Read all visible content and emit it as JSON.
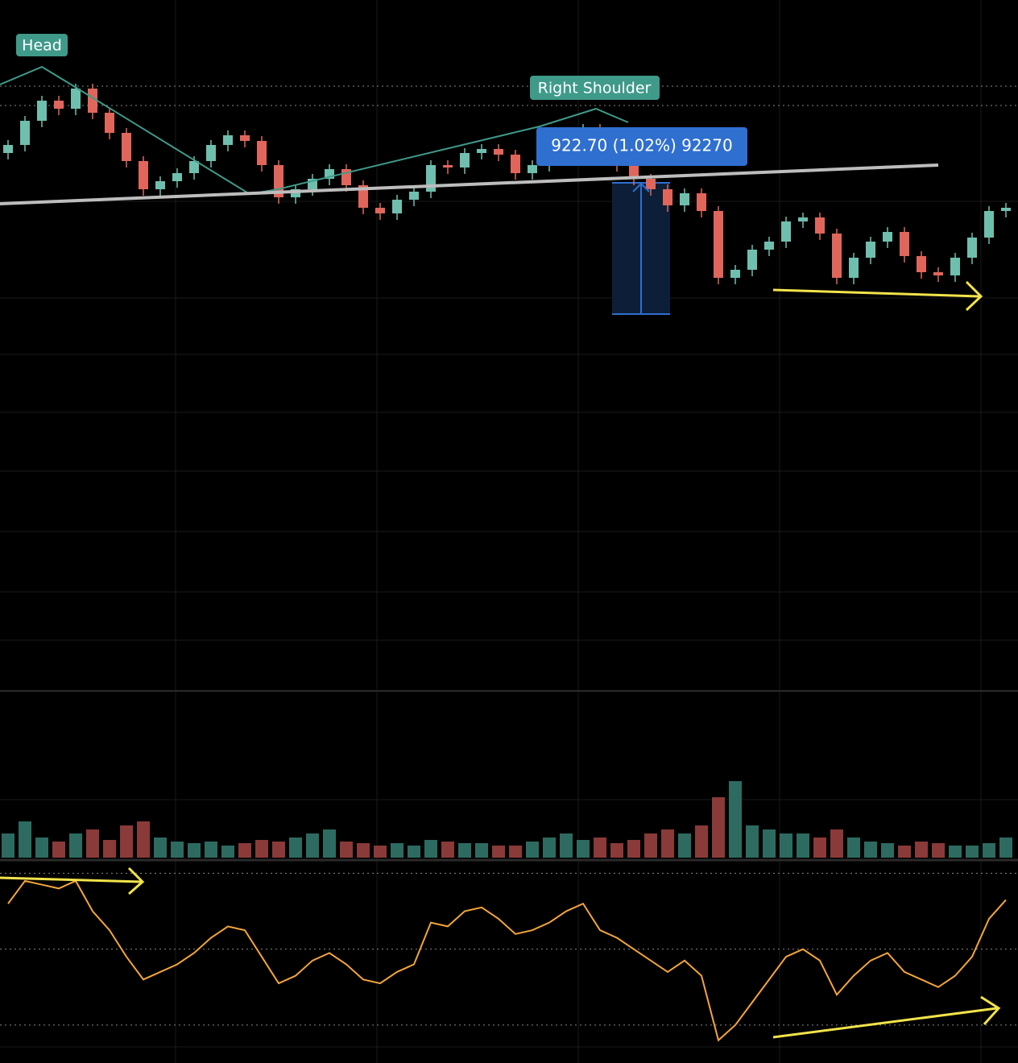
{
  "chart_data": {
    "type": "candlestick",
    "annotations": {
      "head": "Head",
      "right_shoulder": "Right Shoulder",
      "measure": "922.70 (1.02%) 92270"
    },
    "open": [
      91150,
      91200,
      91350,
      91475,
      91425,
      91550,
      91400,
      91275,
      91100,
      90925,
      90975,
      91025,
      91100,
      91200,
      91260,
      91225,
      91075,
      90875,
      90925,
      90990,
      91050,
      90950,
      90810,
      90775,
      90860,
      90910,
      91075,
      91060,
      91150,
      91175,
      91140,
      91025,
      91075,
      91125,
      91250,
      91300,
      91125,
      91075,
      90990,
      90925,
      90825,
      90900,
      90790,
      90375,
      90425,
      90550,
      90600,
      90725,
      90750,
      90650,
      90375,
      90500,
      90600,
      90660,
      90510,
      90410,
      90390,
      90500,
      90625,
      90790
    ],
    "high": [
      91230,
      91380,
      91505,
      91505,
      91580,
      91580,
      91430,
      91305,
      91130,
      91005,
      91055,
      91130,
      91230,
      91290,
      91290,
      91255,
      91105,
      90955,
      91020,
      91080,
      91080,
      90980,
      90840,
      90890,
      90940,
      91105,
      91105,
      91180,
      91205,
      91205,
      91170,
      91105,
      91155,
      91280,
      91330,
      91330,
      91155,
      91105,
      91020,
      90955,
      90930,
      90930,
      90820,
      90455,
      90580,
      90630,
      90755,
      90780,
      90780,
      90680,
      90530,
      90630,
      90690,
      90690,
      90540,
      90440,
      90530,
      90655,
      90820,
      90840
    ],
    "low": [
      91110,
      91160,
      91310,
      91385,
      91385,
      91360,
      91235,
      91060,
      90885,
      90885,
      90935,
      90985,
      91060,
      91160,
      91185,
      91035,
      90835,
      90835,
      90885,
      90950,
      90910,
      90770,
      90735,
      90735,
      90820,
      90870,
      91020,
      91020,
      91110,
      91100,
      90985,
      90985,
      91035,
      91085,
      91210,
      91085,
      91035,
      90950,
      90885,
      90785,
      90785,
      90750,
      90335,
      90335,
      90385,
      90510,
      90560,
      90685,
      90610,
      90335,
      90335,
      90460,
      90560,
      90470,
      90370,
      90350,
      90350,
      90460,
      90585,
      90750
    ],
    "close": [
      91200,
      91350,
      91475,
      91425,
      91550,
      91400,
      91275,
      91100,
      90925,
      90975,
      91025,
      91100,
      91200,
      91260,
      91225,
      91075,
      90875,
      90925,
      90990,
      91050,
      90950,
      90810,
      90775,
      90860,
      90910,
      91075,
      91060,
      91150,
      91175,
      91140,
      91025,
      91075,
      91125,
      91250,
      91300,
      91125,
      91075,
      90990,
      90925,
      90825,
      90900,
      90790,
      90375,
      90425,
      90550,
      90600,
      90725,
      90750,
      90650,
      90375,
      90500,
      90600,
      90660,
      90510,
      90410,
      90390,
      90500,
      90625,
      90790,
      90810
    ],
    "up_color": "#6fbfae",
    "down_color": "#e0665c",
    "ylim": [
      87800,
      92100
    ],
    "volume": {
      "values": [
        30,
        45,
        25,
        20,
        30,
        35,
        22,
        40,
        45,
        25,
        20,
        18,
        20,
        15,
        18,
        22,
        20,
        25,
        30,
        35,
        20,
        18,
        15,
        18,
        15,
        22,
        20,
        18,
        18,
        15,
        15,
        20,
        25,
        30,
        22,
        25,
        18,
        22,
        30,
        35,
        30,
        40,
        75,
        95,
        40,
        35,
        30,
        30,
        25,
        35,
        25,
        20,
        18,
        15,
        20,
        18,
        15,
        15,
        18,
        25
      ],
      "ylim": [
        0,
        100
      ],
      "up_color": "#2d6b61",
      "down_color": "#8a3a38"
    },
    "oscillator": {
      "values": [
        62,
        68,
        67,
        66,
        68,
        60,
        55,
        48,
        42,
        44,
        46,
        49,
        53,
        56,
        55,
        48,
        41,
        43,
        47,
        49,
        46,
        42,
        41,
        44,
        46,
        57,
        56,
        60,
        61,
        58,
        54,
        55,
        57,
        60,
        62,
        55,
        53,
        50,
        47,
        44,
        47,
        43,
        26,
        30,
        36,
        42,
        48,
        50,
        47,
        38,
        43,
        47,
        49,
        44,
        42,
        40,
        43,
        48,
        58,
        63
      ],
      "ylim": [
        20,
        72
      ],
      "levels": [
        70,
        50,
        30
      ],
      "color": "#f5a53a"
    }
  }
}
